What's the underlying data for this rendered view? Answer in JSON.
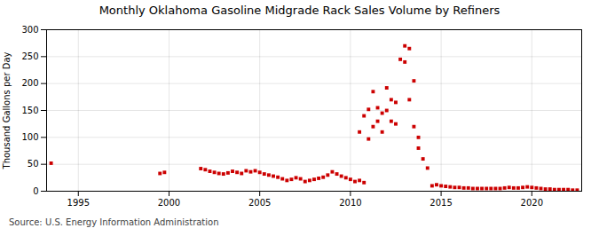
{
  "chart_data": {
    "type": "scatter",
    "title": "Monthly Oklahoma Gasoline Midgrade Rack Sales Volume by Refiners",
    "ylabel": "Thousand Gallons per Day",
    "annotations": [
      "Source: U.S. Energy Information Administration"
    ],
    "color": "#cc0000",
    "marker": "square",
    "grid": true,
    "xlim": [
      1993.25,
      2022.75
    ],
    "xticks": [
      1995,
      2000,
      2005,
      2010,
      2015,
      2020
    ],
    "ylim": [
      0,
      300
    ],
    "yticks": [
      0,
      50,
      100,
      150,
      200,
      250,
      300
    ],
    "x": [
      1993.5,
      1999.5,
      1999.75,
      2001.75,
      2002.0,
      2002.25,
      2002.5,
      2002.75,
      2003.0,
      2003.25,
      2003.5,
      2003.75,
      2004.0,
      2004.25,
      2004.5,
      2004.75,
      2005.0,
      2005.25,
      2005.5,
      2005.75,
      2006.0,
      2006.25,
      2006.5,
      2006.75,
      2007.0,
      2007.25,
      2007.5,
      2007.75,
      2008.0,
      2008.25,
      2008.5,
      2008.75,
      2009.0,
      2009.25,
      2009.5,
      2009.75,
      2010.0,
      2010.25,
      2010.5,
      2010.75,
      2010.5,
      2010.75,
      2011.0,
      2011.0,
      2011.25,
      2011.25,
      2011.5,
      2011.5,
      2011.75,
      2011.75,
      2012.0,
      2012.0,
      2012.25,
      2012.25,
      2012.5,
      2012.5,
      2012.75,
      2013.0,
      2013.0,
      2013.25,
      2013.25,
      2013.5,
      2013.5,
      2013.75,
      2013.75,
      2014.0,
      2014.25,
      2014.5,
      2014.75,
      2015.0,
      2015.25,
      2015.5,
      2015.75,
      2016.0,
      2016.25,
      2016.5,
      2016.75,
      2017.0,
      2017.25,
      2017.5,
      2017.75,
      2018.0,
      2018.25,
      2018.5,
      2018.75,
      2019.0,
      2019.25,
      2019.5,
      2019.75,
      2020.0,
      2020.25,
      2020.5,
      2020.75,
      2021.0,
      2021.25,
      2021.5,
      2021.75,
      2022.0,
      2022.25,
      2022.5
    ],
    "values": [
      52,
      33,
      35,
      42,
      40,
      37,
      35,
      33,
      32,
      34,
      37,
      35,
      33,
      38,
      36,
      38,
      35,
      32,
      30,
      28,
      26,
      23,
      20,
      22,
      25,
      23,
      18,
      20,
      22,
      24,
      26,
      30,
      36,
      32,
      28,
      25,
      22,
      18,
      20,
      16,
      110,
      140,
      152,
      97,
      185,
      120,
      155,
      130,
      145,
      110,
      192,
      150,
      170,
      130,
      165,
      125,
      245,
      270,
      240,
      265,
      170,
      205,
      120,
      100,
      80,
      60,
      43,
      10,
      12,
      10,
      9,
      8,
      7,
      7,
      6,
      6,
      5,
      5,
      5,
      5,
      5,
      5,
      5,
      6,
      7,
      6,
      6,
      7,
      8,
      7,
      6,
      5,
      4,
      4,
      3,
      3,
      3,
      3,
      2,
      2
    ]
  }
}
